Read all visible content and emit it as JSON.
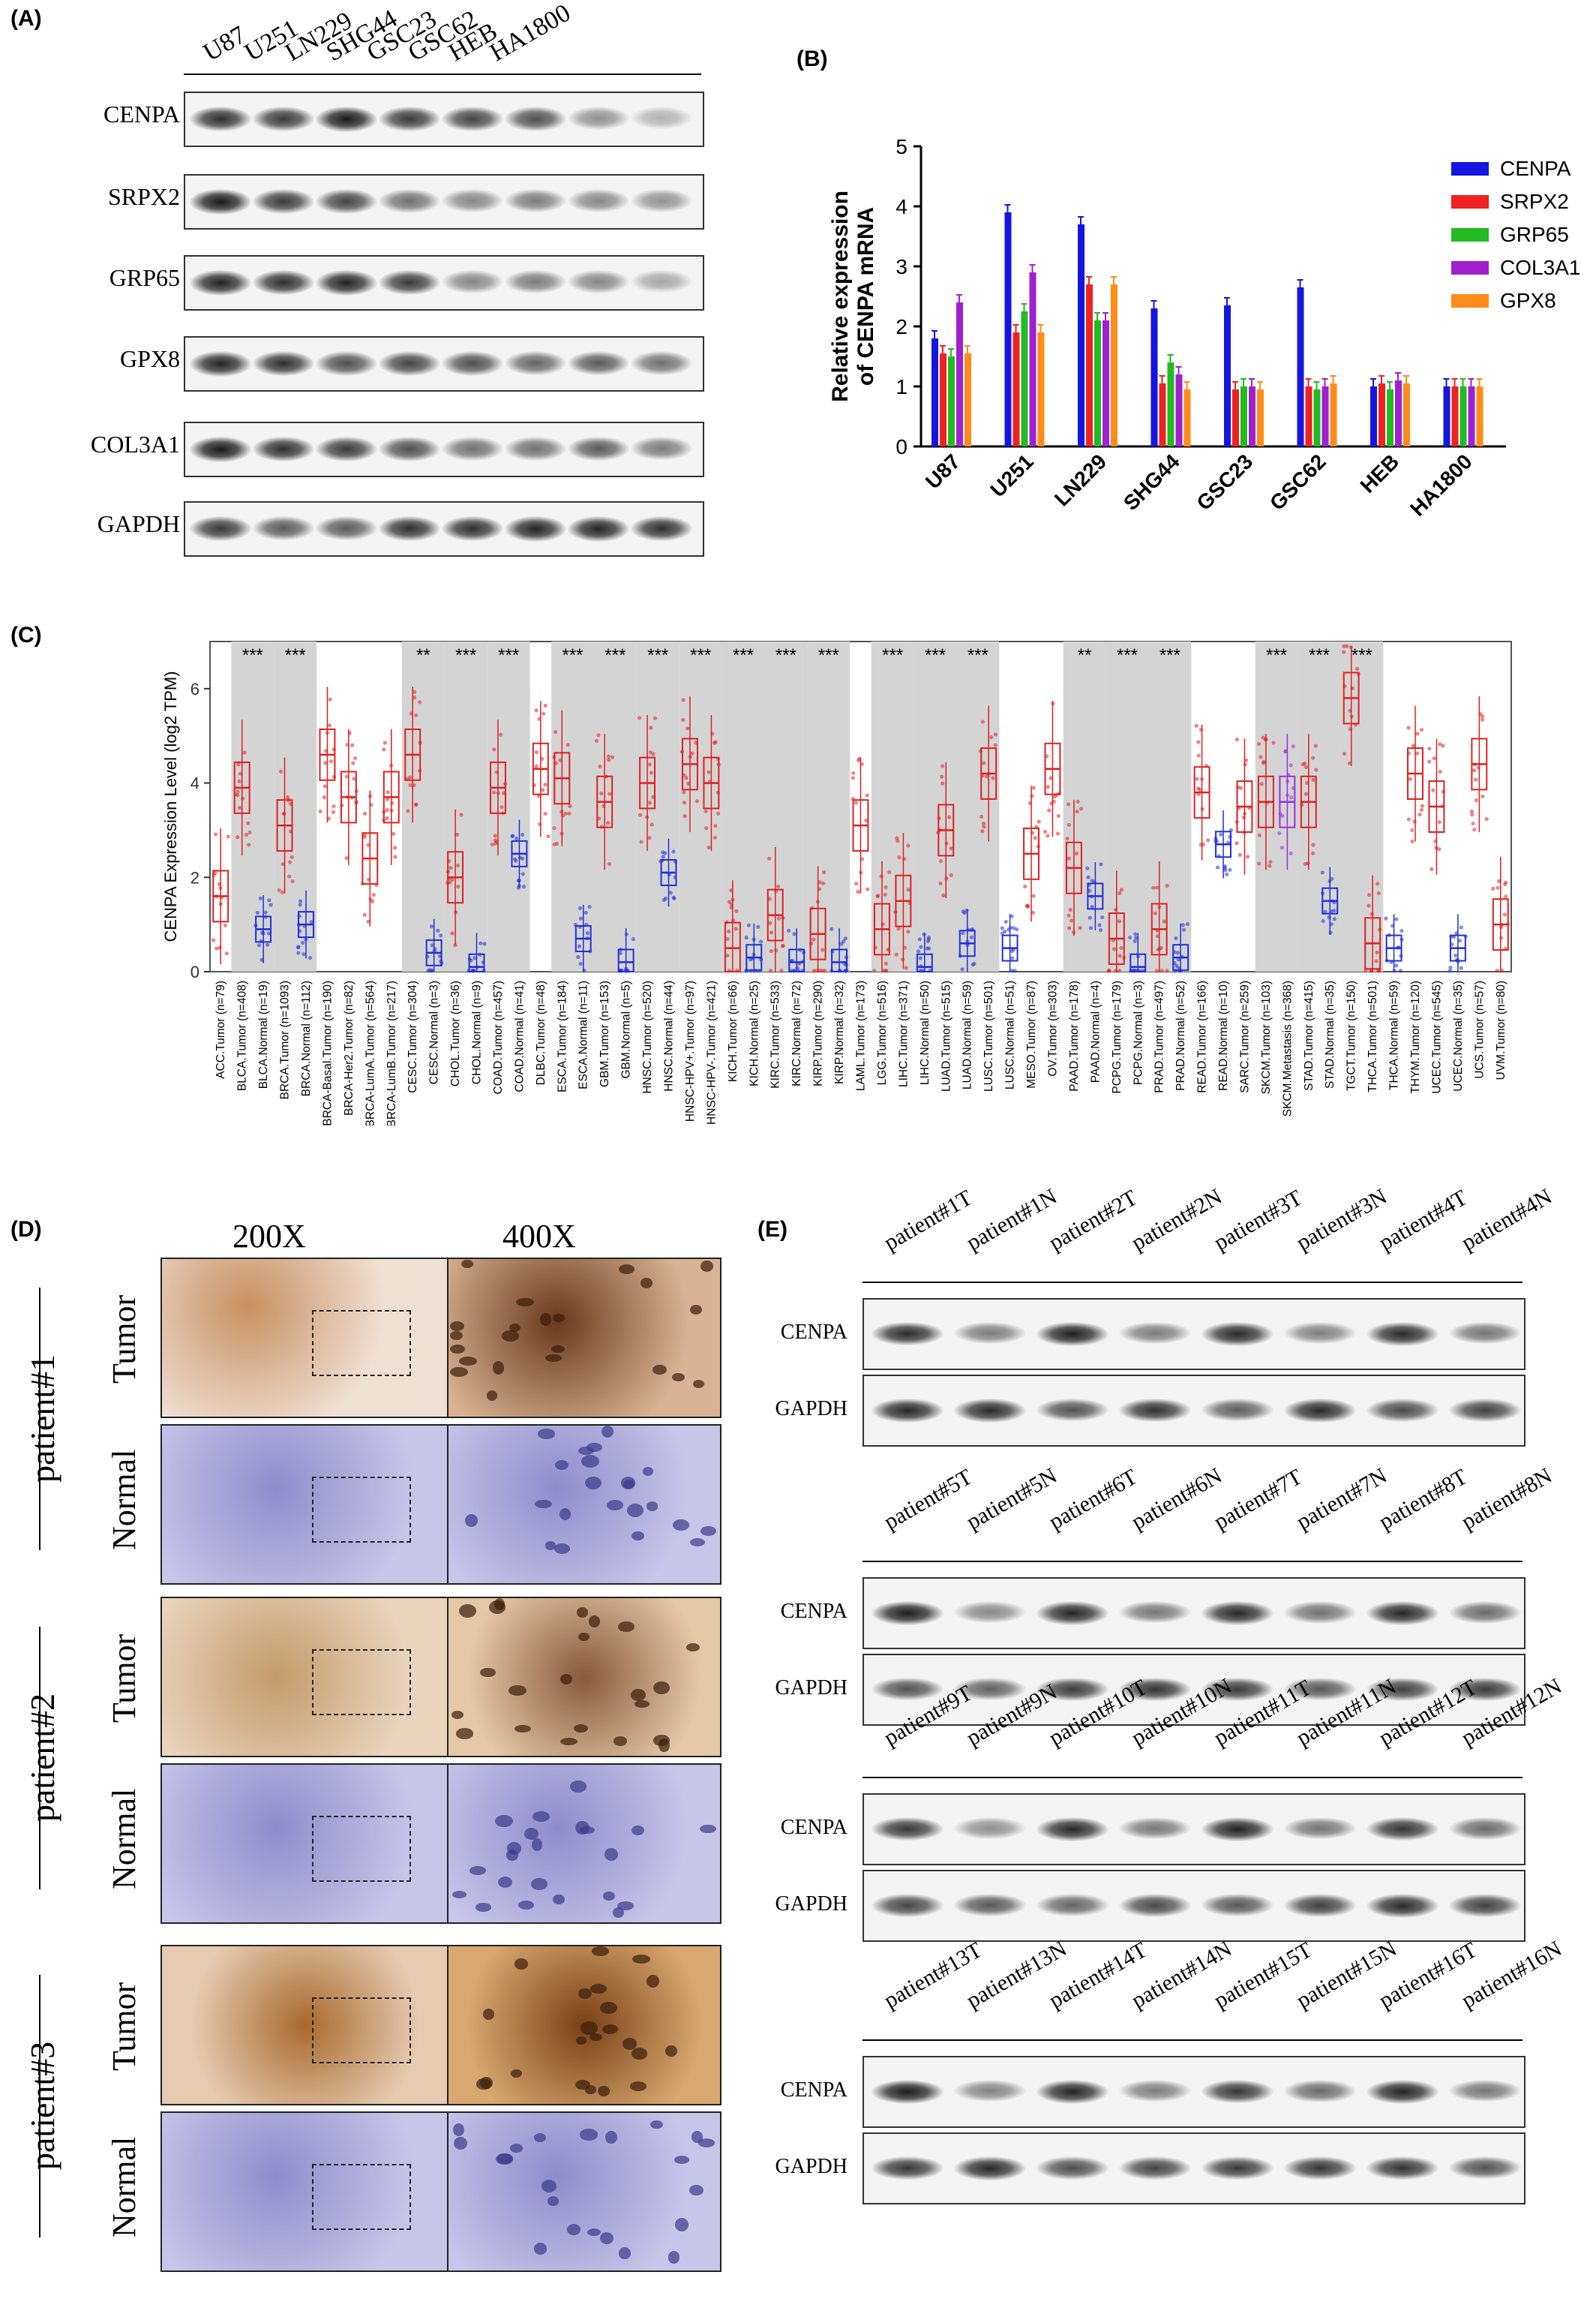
{
  "panels": {
    "a": "(A)",
    "b": "(B)",
    "c": "(C)",
    "d": "(D)",
    "e": "(E)"
  },
  "panel_a": {
    "lanes": [
      "U87",
      "U251",
      "LN229",
      "SHG44",
      "GSC23",
      "GSC62",
      "HEB",
      "HA1800"
    ],
    "proteins": [
      "CENPA",
      "SRPX2",
      "GRP65",
      "GPX8",
      "COL3A1",
      "GAPDH"
    ]
  },
  "panel_b_colors": {
    "CENPA": "#1515e0",
    "SRPX2": "#ee2222",
    "GRP65": "#22bb22",
    "COL3A1": "#a020d0",
    "GPX8": "#ff8c1a"
  },
  "chart_data": [
    {
      "type": "bar",
      "ylabel": "Relative expression\nof CENPA mRNA",
      "ylim": [
        0,
        5
      ],
      "yticks": [
        0,
        1,
        2,
        3,
        4,
        5
      ],
      "categories": [
        "U87",
        "U251",
        "LN229",
        "SHG44",
        "GSC23",
        "GSC62",
        "HEB",
        "HA1800"
      ],
      "legend": "right",
      "series": [
        {
          "name": "CENPA",
          "values": [
            1.8,
            3.9,
            3.7,
            2.3,
            2.35,
            2.65,
            1.0,
            1.0
          ]
        },
        {
          "name": "SRPX2",
          "values": [
            1.55,
            1.9,
            2.7,
            1.05,
            0.95,
            1.0,
            1.05,
            1.0
          ]
        },
        {
          "name": "GRP65",
          "values": [
            1.5,
            2.25,
            2.1,
            1.4,
            1.0,
            0.95,
            0.95,
            1.0
          ]
        },
        {
          "name": "COL3A1",
          "values": [
            2.4,
            2.9,
            2.1,
            1.2,
            1.0,
            1.0,
            1.1,
            1.0
          ]
        },
        {
          "name": "GPX8",
          "values": [
            1.55,
            1.9,
            2.7,
            0.95,
            0.95,
            1.05,
            1.05,
            1.0
          ]
        }
      ]
    },
    {
      "type": "box",
      "ylabel": "CENPA Expression Level (log2 TPM)",
      "ylim": [
        0,
        7
      ],
      "yticks": [
        0,
        2,
        4,
        6
      ],
      "categories": [
        "ACC.Tumor (n=79)",
        "BLCA.Tumor (n=408)",
        "BLCA.Normal (n=19)",
        "BRCA.Tumor (n=1093)",
        "BRCA.Normal (n=112)",
        "BRCA-Basal.Tumor (n=190)",
        "BRCA-Her2.Tumor (n=82)",
        "BRCA-LumA.Tumor (n=564)",
        "BRCA-LumB.Tumor (n=217)",
        "CESC.Tumor (n=304)",
        "CESC.Normal (n=3)",
        "CHOL.Tumor (n=36)",
        "CHOL.Normal (n=9)",
        "COAD.Tumor (n=457)",
        "COAD.Normal (n=41)",
        "DLBC.Tumor (n=48)",
        "ESCA.Tumor (n=184)",
        "ESCA.Normal (n=11)",
        "GBM.Tumor (n=153)",
        "GBM.Normal (n=5)",
        "HNSC.Tumor (n=520)",
        "HNSC.Normal (n=44)",
        "HNSC-HPV+.Tumor (n=97)",
        "HNSC-HPV-.Tumor (n=421)",
        "KICH.Tumor (n=66)",
        "KICH.Normal (n=25)",
        "KIRC.Tumor (n=533)",
        "KIRC.Normal (n=72)",
        "KIRP.Tumor (n=290)",
        "KIRP.Normal (n=32)",
        "LAML.Tumor (n=173)",
        "LGG.Tumor (n=516)",
        "LIHC.Tumor (n=371)",
        "LIHC.Normal (n=50)",
        "LUAD.Tumor (n=515)",
        "LUAD.Normal (n=59)",
        "LUSC.Tumor (n=501)",
        "LUSC.Normal (n=51)",
        "MESO.Tumor (n=87)",
        "OV.Tumor (n=303)",
        "PAAD.Tumor (n=178)",
        "PAAD.Normal (n=4)",
        "PCPG.Tumor (n=179)",
        "PCPG.Normal (n=3)",
        "PRAD.Tumor (n=497)",
        "PRAD.Normal (n=52)",
        "READ.Tumor (n=166)",
        "READ.Normal (n=10)",
        "SARC.Tumor (n=259)",
        "SKCM.Tumor (n=103)",
        "SKCM.Metastasis (n=368)",
        "STAD.Tumor (n=415)",
        "STAD.Normal (n=35)",
        "TGCT.Tumor (n=150)",
        "THCA.Tumor (n=501)",
        "THCA.Normal (n=59)",
        "THYM.Tumor (n=120)",
        "UCEC.Tumor (n=545)",
        "UCEC.Normal (n=35)",
        "UCS.Tumor (n=57)",
        "UVM.Tumor (n=80)"
      ],
      "medians": [
        1.6,
        3.9,
        0.9,
        3.1,
        1.0,
        4.6,
        3.7,
        2.4,
        3.7,
        4.6,
        0.4,
        2.0,
        0.1,
        3.9,
        2.5,
        4.3,
        4.1,
        0.7,
        3.6,
        0.2,
        4.0,
        2.1,
        4.4,
        4.0,
        0.5,
        0.3,
        1.2,
        0.2,
        0.8,
        0.2,
        3.1,
        0.9,
        1.5,
        0.1,
        3.0,
        0.6,
        4.2,
        0.5,
        2.5,
        4.3,
        2.2,
        1.6,
        0.7,
        0.1,
        0.9,
        0.3,
        3.8,
        2.7,
        3.5,
        3.6,
        3.6,
        3.6,
        1.5,
        5.8,
        0.6,
        0.5,
        4.2,
        3.5,
        0.5,
        4.4,
        1.0
      ],
      "significance": [
        "",
        "***",
        "",
        "***",
        "",
        "",
        "",
        "",
        "",
        "**",
        "",
        "***",
        "",
        "***",
        "",
        "",
        "***",
        "",
        "***",
        "",
        "***",
        "",
        "***",
        "",
        "***",
        "",
        "***",
        "",
        "***",
        "",
        "",
        "***",
        "",
        "***",
        "",
        "***",
        "",
        "",
        "",
        "",
        "**",
        "",
        "***",
        "",
        "***",
        "",
        "",
        "",
        "",
        "***",
        "",
        "***",
        "",
        "***",
        "",
        "",
        ""
      ]
    }
  ],
  "panel_d": {
    "magnifications": [
      "200X",
      "400X"
    ],
    "patients": [
      "patient#1",
      "patient#2",
      "patient#3"
    ],
    "tissues": [
      "Tumor",
      "Normal"
    ]
  },
  "panel_e": {
    "proteins": [
      "CENPA",
      "GAPDH"
    ],
    "groups": [
      [
        "patient#1T",
        "patient#1N",
        "patient#2T",
        "patient#2N",
        "patient#3T",
        "patient#3N",
        "patient#4T",
        "patient#4N"
      ],
      [
        "patient#5T",
        "patient#5N",
        "patient#6T",
        "patient#6N",
        "patient#7T",
        "patient#7N",
        "patient#8T",
        "patient#8N"
      ],
      [
        "patient#9T",
        "patient#9N",
        "patient#10T",
        "patient#10N",
        "patient#11T",
        "patient#11N",
        "patient#12T",
        "patient#12N"
      ],
      [
        "patient#13T",
        "patient#13N",
        "patient#14T",
        "patient#14N",
        "patient#15T",
        "patient#15N",
        "patient#16T",
        "patient#16N"
      ]
    ]
  }
}
